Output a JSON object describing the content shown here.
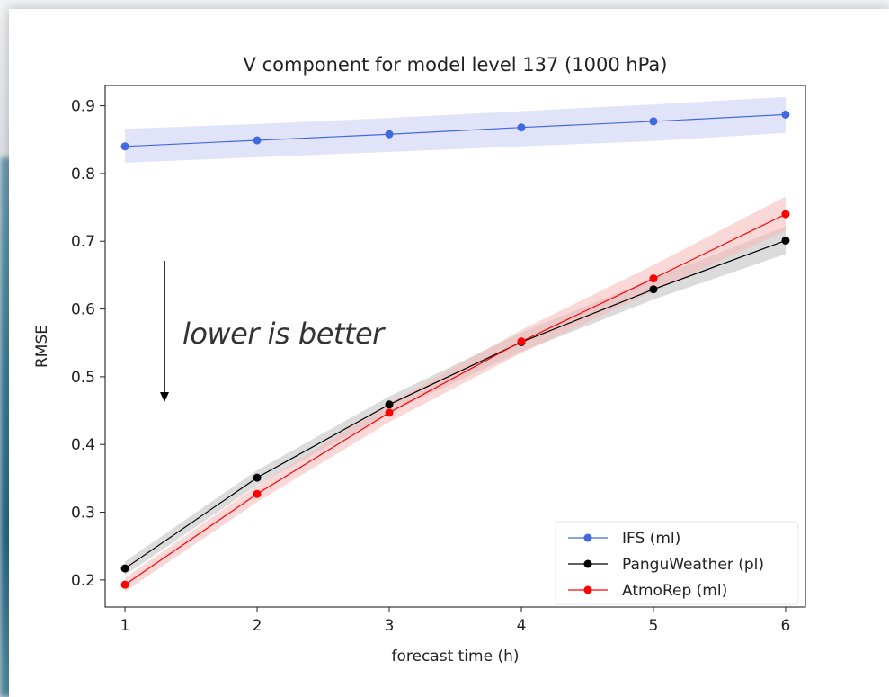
{
  "chart_data": {
    "type": "line",
    "title": "V component for model level 137 (1000 hPa)",
    "xlabel": "forecast time (h)",
    "ylabel": "RMSE",
    "x": [
      1,
      2,
      3,
      4,
      5,
      6
    ],
    "xlim": [
      0.85,
      6.15
    ],
    "ylim": [
      0.16,
      0.93
    ],
    "xticks": [
      1,
      2,
      3,
      4,
      5,
      6
    ],
    "yticks": [
      0.2,
      0.3,
      0.4,
      0.5,
      0.6,
      0.7,
      0.8,
      0.9
    ],
    "ytick_labels": [
      "0.2",
      "0.3",
      "0.4",
      "0.5",
      "0.6",
      "0.7",
      "0.8",
      "0.9"
    ],
    "grid": false,
    "legend_position": "bottom-right",
    "series": [
      {
        "name": "IFS (ml)",
        "color": "#4169e1",
        "band_color": "#c8ccf4",
        "values": [
          0.84,
          0.849,
          0.858,
          0.868,
          0.877,
          0.887
        ],
        "band_lower": [
          0.816,
          0.824,
          0.832,
          0.84,
          0.848,
          0.86
        ],
        "band_upper": [
          0.866,
          0.873,
          0.882,
          0.892,
          0.902,
          0.913
        ]
      },
      {
        "name": "PanguWeather (pl)",
        "color": "#000000",
        "band_color": "#bdbdbd",
        "values": [
          0.217,
          0.351,
          0.459,
          0.551,
          0.629,
          0.701
        ],
        "band_lower": [
          0.207,
          0.34,
          0.447,
          0.537,
          0.614,
          0.681
        ],
        "band_upper": [
          0.227,
          0.362,
          0.471,
          0.565,
          0.645,
          0.722
        ]
      },
      {
        "name": "AtmoRep (ml)",
        "color": "#ff0000",
        "band_color": "#f7b8b8",
        "values": [
          0.193,
          0.327,
          0.447,
          0.552,
          0.645,
          0.74
        ],
        "band_lower": [
          0.183,
          0.315,
          0.433,
          0.535,
          0.626,
          0.715
        ],
        "band_upper": [
          0.203,
          0.339,
          0.461,
          0.569,
          0.665,
          0.766
        ]
      }
    ],
    "annotation": {
      "text": "lower is better",
      "arrow": "down"
    }
  }
}
